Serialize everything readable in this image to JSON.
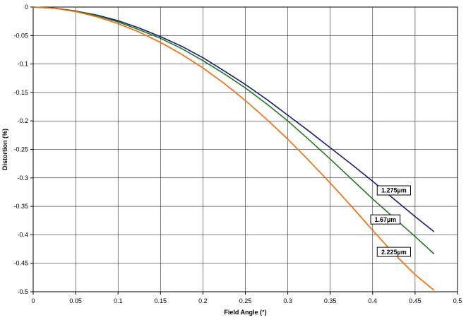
{
  "chart_data": {
    "type": "line",
    "title": "",
    "xlabel": "Field Angle (°)",
    "ylabel": "Distortion (%)",
    "xlim": [
      0,
      0.5
    ],
    "ylim": [
      -0.5,
      0
    ],
    "x_ticks": [
      "0",
      "0.05",
      "0.1",
      "0.15",
      "0.2",
      "0.25",
      "0.3",
      "0.35",
      "0.4",
      "0.45",
      "0.5"
    ],
    "y_ticks": [
      "0",
      "-0.05",
      "-0.1",
      "-0.15",
      "-0.2",
      "-0.25",
      "-0.3",
      "-0.35",
      "-0.4",
      "-0.45",
      "-0.5"
    ],
    "grid": true,
    "legend": "none",
    "series": [
      {
        "name": "1.275µm",
        "color": "#1a1a80",
        "x": [
          0,
          0.025,
          0.05,
          0.075,
          0.1,
          0.125,
          0.15,
          0.175,
          0.2,
          0.225,
          0.25,
          0.275,
          0.3,
          0.325,
          0.35,
          0.375,
          0.4,
          0.425,
          0.45,
          0.472
        ],
        "y": [
          0,
          -0.002,
          -0.007,
          -0.014,
          -0.024,
          -0.037,
          -0.052,
          -0.069,
          -0.089,
          -0.112,
          -0.136,
          -0.162,
          -0.19,
          -0.218,
          -0.247,
          -0.276,
          -0.306,
          -0.337,
          -0.368,
          -0.394
        ]
      },
      {
        "name": "1.67µm",
        "color": "#1a7a1a",
        "x": [
          0,
          0.025,
          0.05,
          0.075,
          0.1,
          0.125,
          0.15,
          0.175,
          0.2,
          0.225,
          0.25,
          0.275,
          0.3,
          0.325,
          0.35,
          0.375,
          0.4,
          0.425,
          0.45,
          0.472
        ],
        "y": [
          0,
          -0.002,
          -0.007,
          -0.015,
          -0.026,
          -0.04,
          -0.055,
          -0.073,
          -0.094,
          -0.117,
          -0.142,
          -0.17,
          -0.2,
          -0.233,
          -0.267,
          -0.302,
          -0.337,
          -0.37,
          -0.403,
          -0.433
        ]
      },
      {
        "name": "2.225µm",
        "color": "#ff6600",
        "x": [
          0,
          0.025,
          0.05,
          0.075,
          0.1,
          0.125,
          0.15,
          0.175,
          0.2,
          0.225,
          0.25,
          0.275,
          0.3,
          0.325,
          0.35,
          0.375,
          0.4,
          0.425,
          0.45,
          0.472
        ],
        "y": [
          0,
          -0.002,
          -0.008,
          -0.017,
          -0.029,
          -0.044,
          -0.062,
          -0.083,
          -0.107,
          -0.134,
          -0.164,
          -0.197,
          -0.232,
          -0.27,
          -0.309,
          -0.35,
          -0.392,
          -0.433,
          -0.47,
          -0.497
        ]
      }
    ],
    "annotations": [
      {
        "text": "1.275µm",
        "series": 0,
        "x": 0.425,
        "y": -0.322
      },
      {
        "text": "1.67µm",
        "series": 1,
        "x": 0.415,
        "y": -0.373
      },
      {
        "text": "2.225µm",
        "series": 2,
        "x": 0.425,
        "y": -0.43
      }
    ]
  }
}
